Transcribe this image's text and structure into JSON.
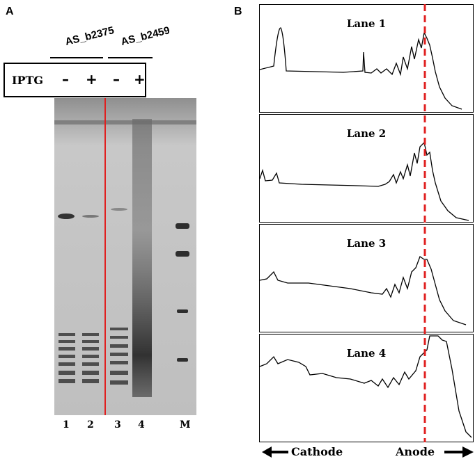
{
  "panel_a": {
    "letter": "A",
    "constructs": [
      {
        "label": "AS_b2375"
      },
      {
        "label": "AS_b2459"
      }
    ],
    "iptg": {
      "label": "IPTG",
      "signs": [
        "–",
        "+",
        "–",
        "+"
      ]
    },
    "lane_numbers": [
      "1",
      "2",
      "3",
      "4",
      "M"
    ]
  },
  "panel_b": {
    "letter": "B",
    "traces": [
      {
        "label": "Lane 1"
      },
      {
        "label": "Lane 2"
      },
      {
        "label": "Lane 3"
      },
      {
        "label": "Lane 4"
      }
    ],
    "left_direction": "Cathode",
    "right_direction": "Anode",
    "dashed_line_color": "#e02020"
  },
  "colors": {
    "divider_line": "#e02020",
    "gel_background": "#c9c9c9"
  }
}
